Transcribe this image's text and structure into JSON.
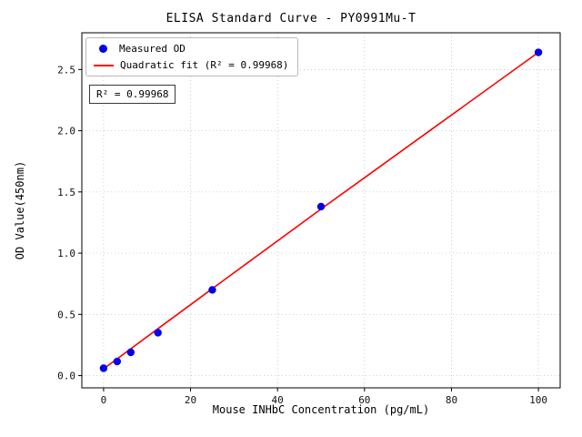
{
  "title": "ELISA Standard Curve - PY0991Mu-T",
  "annotation": {
    "r2_label": "R² = 0.99968"
  },
  "colors": {
    "points": "#0000ee",
    "fit_line": "#ff0000",
    "grid": "#b8b8b8",
    "axis": "#000000"
  },
  "chart_data": {
    "type": "scatter",
    "title": "ELISA Standard Curve - PY0991Mu-T",
    "xlabel": "Mouse INHbC Concentration (pg/mL)",
    "ylabel": "OD Value(450nm)",
    "xlim": [
      -5,
      105
    ],
    "ylim": [
      -0.1,
      2.8
    ],
    "xticks": [
      0,
      20,
      40,
      60,
      80,
      100
    ],
    "yticks": [
      0.0,
      0.5,
      1.0,
      1.5,
      2.0,
      2.5
    ],
    "grid": true,
    "grid_style": "dotted",
    "legend_position": "upper left",
    "r_squared": 0.99968,
    "series": [
      {
        "name": "Measured OD",
        "type": "scatter",
        "color": "#0000ee",
        "x": [
          0,
          3.125,
          6.25,
          12.5,
          25,
          50,
          100
        ],
        "y": [
          0.06,
          0.115,
          0.19,
          0.35,
          0.7,
          1.38,
          2.64
        ]
      },
      {
        "name": "Quadratic fit (R² = 0.99968)",
        "type": "line",
        "color": "#ff0000",
        "x": [
          0,
          12.5,
          25,
          50,
          75,
          100
        ],
        "y": [
          0.055,
          0.383,
          0.71,
          1.36,
          2.0,
          2.64
        ]
      }
    ]
  }
}
